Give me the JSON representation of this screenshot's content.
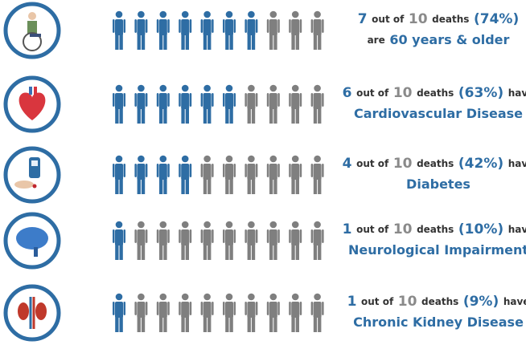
{
  "rows": [
    {
      "count": 7,
      "total": 10,
      "out_of": "out of",
      "deaths": "deaths",
      "percent": "(74%)",
      "pre": "are",
      "condition": "60 years & older"
    },
    {
      "count": 6,
      "total": 10,
      "out_of": "out of",
      "deaths": "deaths",
      "percent": "(63%)",
      "post": "have",
      "condition": "Cardiovascular Disease"
    },
    {
      "count": 4,
      "total": 10,
      "out_of": "out of",
      "deaths": "deaths",
      "percent": "(42%)",
      "post": "have",
      "condition": "Diabetes"
    },
    {
      "count": 1,
      "total": 10,
      "out_of": "out of",
      "deaths": "deaths",
      "percent": "(10%)",
      "post": "have",
      "condition": "Neurological Impairment"
    },
    {
      "count": 1,
      "total": 10,
      "out_of": "out of",
      "deaths": "deaths",
      "percent": "(9%)",
      "post": "have",
      "condition": "Chronic Kidney Disease"
    }
  ]
}
